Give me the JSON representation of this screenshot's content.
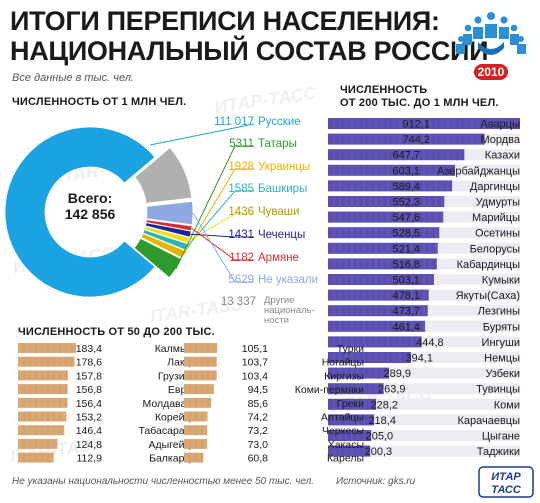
{
  "header": {
    "title_line1": "ИТОГИ ПЕРЕПИСИ НАСЕЛЕНИЯ:",
    "title_line2": "НАЦИОНАЛЬНЫЙ СОСТАВ РОССИИ",
    "subtitle": "Все данные в тыс. чел.",
    "logo_year": "2010"
  },
  "footer": {
    "note": "Не указаны национальности численностью менее 50 тыс. чел.",
    "source": "Источник: gks.ru",
    "agency_line1": "ИТАР",
    "agency_line2": "ТАСС"
  },
  "watermark": [
    "ИТАР-ТАСС",
    "ITAR-TASS"
  ],
  "colors": {
    "pie_main": "#1aa3e0",
    "bar_big": "#5a4fb0",
    "bar_small": "#d9a875",
    "text_dark": "#1a1a1a"
  },
  "chart_data": [
    {
      "type": "pie",
      "title": "ЧИСЛЕННОСТЬ ОТ 1 МЛН ЧЕЛ.",
      "total_label": "Всего:",
      "total_value": "142 856",
      "slices": [
        {
          "label": "Русские",
          "value": 111017,
          "display": "111 017",
          "color": "#1aa3e0"
        },
        {
          "label": "Татары",
          "value": 5311,
          "display": "5311",
          "color": "#2e9a2e"
        },
        {
          "label": "Украинцы",
          "value": 1928,
          "display": "1928",
          "color": "#e8b400"
        },
        {
          "label": "Башкиры",
          "value": 1585,
          "display": "1585",
          "color": "#2bb5b0"
        },
        {
          "label": "Чуваши",
          "value": 1436,
          "display": "1436",
          "color": "#f2de1a"
        },
        {
          "label": "Чеченцы",
          "value": 1431,
          "display": "1431",
          "color": "#22229a"
        },
        {
          "label": "Армяне",
          "value": 1182,
          "display": "1182",
          "color": "#d43030"
        },
        {
          "label": "Не указали",
          "value": 5629,
          "display": "5629",
          "color": "#8fa8e0"
        },
        {
          "label": "Другие национальности",
          "value": 13337,
          "display": "13 337",
          "color": "#b0b0b0"
        }
      ],
      "other_label_lines": [
        "Другие",
        "националь-",
        "ности"
      ]
    },
    {
      "type": "bar",
      "title": "ЧИСЛЕННОСТЬ ОТ 50 ДО 200 ТЫС.",
      "columns": [
        {
          "categories": [
            "Калмыки",
            "Лакцы",
            "Грузины",
            "Евреи",
            "Молдаване",
            "Корейцы",
            "Табасараны",
            "Адыгейцы",
            "Балкарцы"
          ],
          "values": [
            183.4,
            178.6,
            157.8,
            156.8,
            156.4,
            153.2,
            146.4,
            124.8,
            112.9
          ],
          "labels": [
            "183,4",
            "178,6",
            "157,8",
            "156,8",
            "156,4",
            "153,2",
            "146,4",
            "124,8",
            "112,9"
          ]
        },
        {
          "categories": [
            "Турки",
            "Ногайцы",
            "Киргизы",
            "Коми-пермяки",
            "Греки",
            "Алтайцы",
            "Черкесы",
            "Хакасы",
            "Карелы"
          ],
          "values": [
            105.1,
            103.7,
            103.4,
            94.5,
            85.6,
            74.2,
            73.2,
            73.0,
            60.8
          ],
          "labels": [
            "105,1",
            "103,7",
            "103,4",
            "94,5",
            "85,6",
            "74,2",
            "73,2",
            "73,0",
            "60,8"
          ]
        }
      ]
    },
    {
      "type": "bar",
      "title_line1": "ЧИСЛЕННОСТЬ",
      "title_line2": "ОТ 200 ТЫС. ДО 1 МЛН ЧЕЛ.",
      "categories": [
        "Аварцы",
        "Мордва",
        "Казахи",
        "Азербайджанцы",
        "Даргинцы",
        "Удмурты",
        "Марийцы",
        "Осетины",
        "Белорусы",
        "Кабардинцы",
        "Кумыки",
        "Якуты(Саха)",
        "Лезгины",
        "Буряты",
        "Ингуши",
        "Немцы",
        "Узбеки",
        "Тувинцы",
        "Коми",
        "Карачаевцы",
        "Цыгане",
        "Таджики"
      ],
      "values": [
        912.1,
        744.2,
        647.7,
        603.1,
        589.4,
        552.3,
        547.6,
        528.5,
        521.4,
        516.8,
        503.1,
        478.1,
        473.7,
        461.4,
        444.8,
        394.1,
        289.9,
        263.9,
        228.2,
        218.4,
        205.0,
        200.3
      ],
      "labels": [
        "912,1",
        "744,2",
        "647,7",
        "603,1",
        "589,4",
        "552,3",
        "547,6",
        "528,5",
        "521,4",
        "516,8",
        "503,1",
        "478,1",
        "473,7",
        "461,4",
        "444,8",
        "394,1",
        "289,9",
        "263,9",
        "228,2",
        "218,4",
        "205,0",
        "200,3"
      ]
    }
  ]
}
